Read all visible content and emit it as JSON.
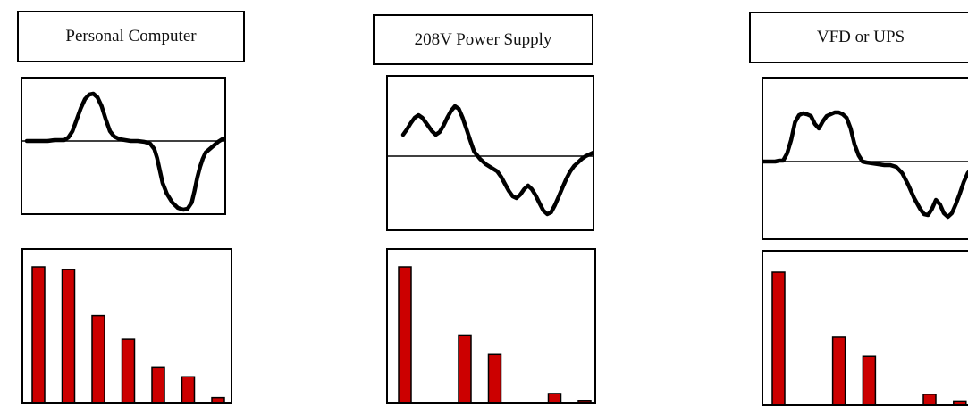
{
  "colors": {
    "bar": "#cc0000",
    "border": "#000000",
    "waveform": "#000000",
    "background": "#ffffff"
  },
  "panels": [
    {
      "title": "Personal Computer",
      "waveform": [
        [
          0,
          59
        ],
        [
          5,
          59
        ],
        [
          10,
          59
        ],
        [
          15,
          59
        ],
        [
          20,
          58
        ],
        [
          24,
          58
        ],
        [
          27,
          58
        ],
        [
          30,
          55
        ],
        [
          33,
          48
        ],
        [
          36,
          35
        ],
        [
          39,
          22
        ],
        [
          42,
          12
        ],
        [
          45,
          7
        ],
        [
          48,
          6
        ],
        [
          51,
          10
        ],
        [
          54,
          20
        ],
        [
          57,
          35
        ],
        [
          60,
          48
        ],
        [
          63,
          54
        ],
        [
          67,
          57
        ],
        [
          71,
          58
        ],
        [
          75,
          59
        ],
        [
          80,
          59
        ],
        [
          85,
          60
        ],
        [
          89,
          62
        ],
        [
          92,
          68
        ],
        [
          94,
          78
        ],
        [
          96,
          92
        ],
        [
          98,
          106
        ],
        [
          101,
          118
        ],
        [
          105,
          128
        ],
        [
          109,
          134
        ],
        [
          113,
          136
        ],
        [
          116,
          135
        ],
        [
          119,
          128
        ],
        [
          121,
          115
        ],
        [
          123,
          100
        ],
        [
          125,
          88
        ],
        [
          127,
          79
        ],
        [
          129,
          72
        ],
        [
          132,
          68
        ],
        [
          135,
          64
        ],
        [
          138,
          60
        ],
        [
          141,
          57
        ],
        [
          143,
          56
        ]
      ],
      "harmonics": [
        1.0,
        0.98,
        0.65,
        0.48,
        0.28,
        0.21,
        0.06
      ]
    },
    {
      "title": "208V Power Supply",
      "waveform": [
        [
          0,
          55
        ],
        [
          2,
          49
        ],
        [
          4,
          42
        ],
        [
          6,
          36
        ],
        [
          8,
          33
        ],
        [
          10,
          36
        ],
        [
          13,
          45
        ],
        [
          15,
          51
        ],
        [
          17,
          55
        ],
        [
          19,
          52
        ],
        [
          21,
          45
        ],
        [
          23,
          36
        ],
        [
          25,
          28
        ],
        [
          27,
          23
        ],
        [
          29,
          26
        ],
        [
          31,
          36
        ],
        [
          33,
          49
        ],
        [
          35,
          62
        ],
        [
          37,
          74
        ],
        [
          40,
          82
        ],
        [
          43,
          88
        ],
        [
          46,
          92
        ],
        [
          49,
          96
        ],
        [
          51,
          102
        ],
        [
          53,
          110
        ],
        [
          55,
          118
        ],
        [
          57,
          124
        ],
        [
          59,
          126
        ],
        [
          61,
          122
        ],
        [
          63,
          116
        ],
        [
          65,
          112
        ],
        [
          67,
          116
        ],
        [
          69,
          123
        ],
        [
          71,
          132
        ],
        [
          73,
          140
        ],
        [
          75,
          144
        ],
        [
          77,
          142
        ],
        [
          79,
          134
        ],
        [
          81,
          124
        ],
        [
          83,
          114
        ],
        [
          85,
          104
        ],
        [
          87,
          96
        ],
        [
          89,
          90
        ],
        [
          91,
          86
        ],
        [
          93,
          82
        ],
        [
          95,
          79
        ],
        [
          97,
          77
        ],
        [
          99,
          75
        ]
      ],
      "harmonics": [
        1.0,
        0.0,
        0.51,
        0.37,
        0.0,
        0.09,
        0.04
      ]
    },
    {
      "title": "VFD or UPS",
      "waveform": [
        [
          0,
          59
        ],
        [
          2,
          59
        ],
        [
          4,
          59
        ],
        [
          6,
          59
        ],
        [
          8,
          58
        ],
        [
          10,
          58
        ],
        [
          12,
          50
        ],
        [
          14,
          35
        ],
        [
          16,
          15
        ],
        [
          18,
          7
        ],
        [
          20,
          5
        ],
        [
          22,
          6
        ],
        [
          24,
          8
        ],
        [
          26,
          17
        ],
        [
          28,
          22
        ],
        [
          30,
          14
        ],
        [
          32,
          8
        ],
        [
          34,
          6
        ],
        [
          36,
          4
        ],
        [
          38,
          4
        ],
        [
          40,
          6
        ],
        [
          42,
          10
        ],
        [
          44,
          22
        ],
        [
          46,
          40
        ],
        [
          48,
          52
        ],
        [
          50,
          59
        ],
        [
          52,
          60
        ],
        [
          55,
          61
        ],
        [
          58,
          62
        ],
        [
          61,
          63
        ],
        [
          64,
          63
        ],
        [
          67,
          65
        ],
        [
          70,
          72
        ],
        [
          73,
          85
        ],
        [
          76,
          100
        ],
        [
          79,
          112
        ],
        [
          81,
          118
        ],
        [
          83,
          119
        ],
        [
          85,
          112
        ],
        [
          87,
          102
        ],
        [
          89,
          107
        ],
        [
          91,
          117
        ],
        [
          93,
          121
        ],
        [
          95,
          117
        ],
        [
          97,
          107
        ],
        [
          99,
          95
        ],
        [
          101,
          82
        ],
        [
          103,
          72
        ],
        [
          105,
          67
        ],
        [
          107,
          65
        ]
      ],
      "harmonics": [
        1.0,
        0.0,
        0.52,
        0.38,
        0.0,
        0.1,
        0.05
      ]
    }
  ]
}
